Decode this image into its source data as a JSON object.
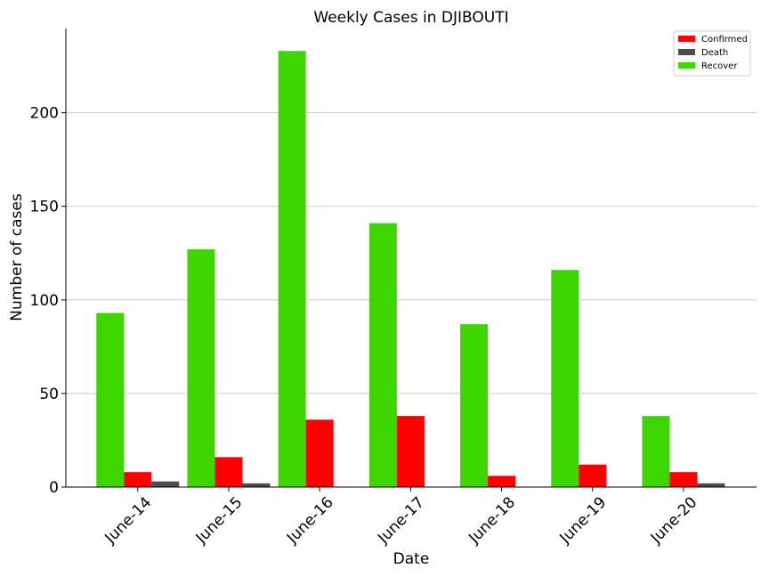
{
  "chart_data": {
    "type": "bar",
    "title": "Weekly Cases in DJIBOUTI",
    "xlabel": "Date",
    "ylabel": "Number of cases",
    "categories": [
      "June-14",
      "June-15",
      "June-16",
      "June-17",
      "June-18",
      "June-19",
      "June-20"
    ],
    "series": [
      {
        "name": "Recover",
        "color": "#3dd600",
        "values": [
          93,
          127,
          233,
          141,
          87,
          116,
          38
        ]
      },
      {
        "name": "Confirmed",
        "color": "#ff0000",
        "values": [
          8,
          16,
          36,
          38,
          6,
          12,
          8
        ]
      },
      {
        "name": "Death",
        "color": "#4d4d4d",
        "values": [
          3,
          2,
          0,
          0,
          0,
          0,
          2
        ]
      }
    ],
    "legend_order": [
      "Confirmed",
      "Death",
      "Recover"
    ],
    "ylim": [
      0,
      245
    ],
    "yticks": [
      0,
      50,
      100,
      150,
      200
    ],
    "grid": "horizontal",
    "legend_position": "top-right"
  }
}
